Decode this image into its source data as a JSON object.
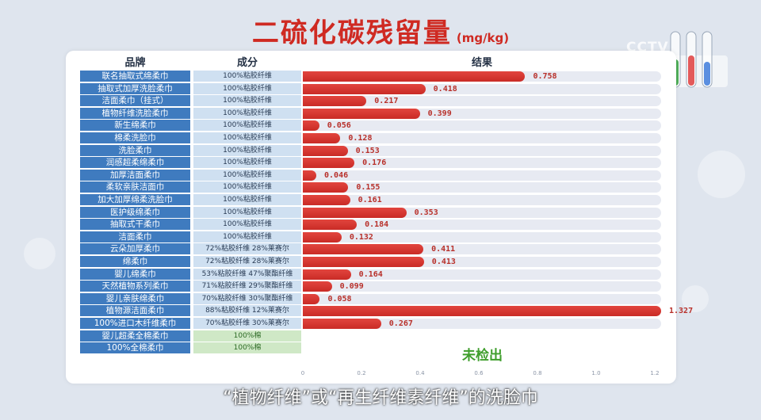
{
  "title": {
    "main": "二硫化碳残留量",
    "unit": "(mg/kg)"
  },
  "logo": "CCTV",
  "headers": {
    "brand": "品牌",
    "component": "成分",
    "result": "结果"
  },
  "not_detected_label": "未检出",
  "subtitle": "“植物纤维”或“再生纤维素纤维”的洗脸巾",
  "colors": {
    "bar": "#d7342d",
    "brand_bg": "#3f7bbf",
    "comp_bg": "#cfe0f1",
    "cotton_bg": "#cfe8c6",
    "not_detected": "#3f9e2c"
  },
  "chart_data": {
    "type": "bar",
    "orientation": "horizontal",
    "title": "二硫化碳残留量(mg/kg)",
    "xlim": [
      0,
      1.2
    ],
    "x_ticks": [
      "0",
      "0.2",
      "0.4",
      "0.6",
      "0.8",
      "1.0",
      "1.2"
    ],
    "rows": [
      {
        "brand": "联名抽取式绵柔巾",
        "component": "100%粘胶纤维",
        "value": 0.758,
        "label": "0.758"
      },
      {
        "brand": "抽取式加厚洗脸柔巾",
        "component": "100%粘胶纤维",
        "value": 0.418,
        "label": "0.418"
      },
      {
        "brand": "洁面柔巾（挂式）",
        "component": "100%粘胶纤维",
        "value": 0.217,
        "label": "0.217"
      },
      {
        "brand": "植物纤维洗脸柔巾",
        "component": "100%粘胶纤维",
        "value": 0.399,
        "label": "0.399"
      },
      {
        "brand": "新生绵柔巾",
        "component": "100%粘胶纤维",
        "value": 0.056,
        "label": "0.056"
      },
      {
        "brand": "棉柔洗脸巾",
        "component": "100%粘胶纤维",
        "value": 0.128,
        "label": "0.128"
      },
      {
        "brand": "洗脸柔巾",
        "component": "100%粘胶纤维",
        "value": 0.153,
        "label": "0.153"
      },
      {
        "brand": "润感超柔绵柔巾",
        "component": "100%粘胶纤维",
        "value": 0.176,
        "label": "0.176"
      },
      {
        "brand": "加厚洁面柔巾",
        "component": "100%粘胶纤维",
        "value": 0.046,
        "label": "0.046"
      },
      {
        "brand": "柔软亲肤洁面巾",
        "component": "100%粘胶纤维",
        "value": 0.155,
        "label": "0.155"
      },
      {
        "brand": "加大加厚绵柔洗脸巾",
        "component": "100%粘胶纤维",
        "value": 0.161,
        "label": "0.161"
      },
      {
        "brand": "医护级绵柔巾",
        "component": "100%粘胶纤维",
        "value": 0.353,
        "label": "0.353"
      },
      {
        "brand": "抽取式干柔巾",
        "component": "100%粘胶纤维",
        "value": 0.184,
        "label": "0.184"
      },
      {
        "brand": "洁面柔巾",
        "component": "100%粘胶纤维",
        "value": 0.132,
        "label": "0.132"
      },
      {
        "brand": "云朵加厚柔巾",
        "component": "72%粘胶纤维 28%莱赛尔",
        "value": 0.411,
        "label": "0.411"
      },
      {
        "brand": "绵柔巾",
        "component": "72%粘胶纤维 28%莱赛尔",
        "value": 0.413,
        "label": "0.413"
      },
      {
        "brand": "婴儿绵柔巾",
        "component": "53%粘胶纤维 47%聚酯纤维",
        "value": 0.164,
        "label": "0.164"
      },
      {
        "brand": "天然植物系列柔巾",
        "component": "71%粘胶纤维 29%聚酯纤维",
        "value": 0.099,
        "label": "0.099"
      },
      {
        "brand": "婴儿亲肤绵柔巾",
        "component": "70%粘胶纤维 30%聚酯纤维",
        "value": 0.058,
        "label": "0.058"
      },
      {
        "brand": "植物源洁面柔巾",
        "component": "88%粘胶纤维 12%莱赛尔",
        "value": 1.327,
        "label": "1.327"
      },
      {
        "brand": "100%进口木纤维柔巾",
        "component": "70%粘胶纤维 30%莱赛尔",
        "value": 0.267,
        "label": "0.267"
      },
      {
        "brand": "婴儿超柔全棉柔巾",
        "component": "100%棉",
        "value": null,
        "label": ""
      },
      {
        "brand": "100%全棉柔巾",
        "component": "100%棉",
        "value": null,
        "label": ""
      }
    ]
  }
}
